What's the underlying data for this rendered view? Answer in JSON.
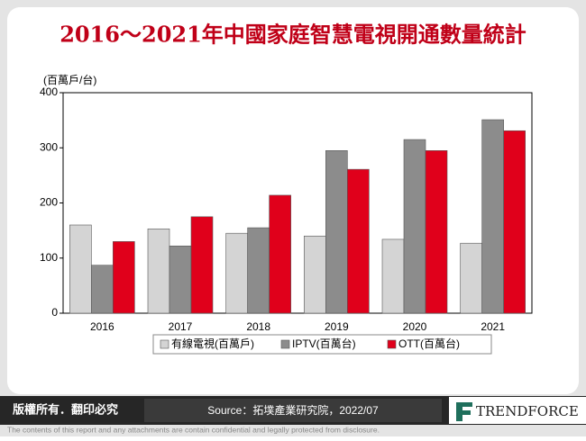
{
  "chart_data": {
    "type": "bar",
    "title": "2016～2021年中國家庭智慧電視開通數量統計",
    "y_label": "(百萬戶/台)",
    "categories": [
      "2016",
      "2017",
      "2018",
      "2019",
      "2020",
      "2021"
    ],
    "series": [
      {
        "name": "有線電視(百萬戶)",
        "color": "#d4d4d4",
        "values": [
          160,
          153,
          145,
          140,
          134,
          127
        ]
      },
      {
        "name": "IPTV(百萬台)",
        "color": "#8c8c8c",
        "values": [
          87,
          122,
          155,
          295,
          315,
          351
        ]
      },
      {
        "name": "OTT(百萬台)",
        "color": "#e0001b",
        "values": [
          130,
          175,
          214,
          261,
          295,
          331
        ]
      }
    ],
    "ylim": [
      0,
      400
    ],
    "yticks": [
      0,
      100,
      200,
      300,
      400
    ],
    "grid": false
  },
  "footer": {
    "rights": "版權所有．翻印必究",
    "source": "Source：拓墣產業研究院，2022/07",
    "logo": "TRENDFORCE",
    "disclaimer": "The contents of this report and any attachments are contain confidential and legally protected from disclosure."
  }
}
